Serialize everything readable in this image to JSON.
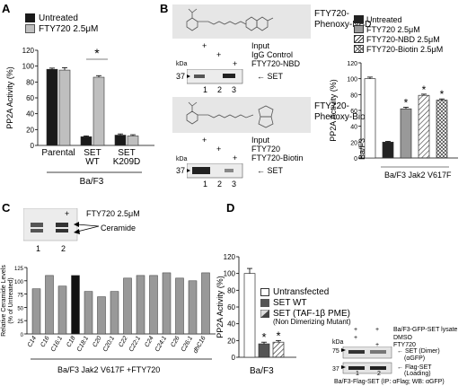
{
  "panels": {
    "a": "A",
    "b": "B",
    "c": "C",
    "d": "D"
  },
  "panel_a": {
    "legend": [
      "Untreated",
      "FTY720 2.5μM"
    ],
    "star": "*",
    "group_label": "Ba/F3"
  },
  "panel_b": {
    "struct_label_1_line1": "FTY720-",
    "struct_label_1_line2": "Phenoxy-NBD",
    "struct_label_2_line1": "FTY720-",
    "struct_label_2_line2": "Phenoxy-Biotin",
    "blot1": {
      "plus": [
        "+",
        "+",
        "+"
      ],
      "rows": [
        "Input",
        "IgG Control",
        "FTY720-NBD"
      ],
      "kda": "kDa",
      "marker": "37",
      "band": "SET",
      "lanes": [
        "1",
        "2",
        "3"
      ]
    },
    "blot2": {
      "plus": [
        "+",
        "+",
        "+"
      ],
      "rows": [
        "Input",
        "FTY720",
        "FTY720-Biotin"
      ],
      "kda": "kDa",
      "marker": "37",
      "band": "SET",
      "lanes": [
        "1",
        "2",
        "3"
      ]
    },
    "legend": [
      "Untreated",
      "FTY720 2.5μM",
      "FTY720-NBD 2.5μM",
      "FTY720-Biotin 2.5μM"
    ],
    "stars": [
      "*",
      "*",
      "*"
    ],
    "x_label_1": "Ba/F3",
    "x_label_2": "Ba/F3 Jak2 V617F"
  },
  "panel_c": {
    "tlc": {
      "plus": "+",
      "treat": "FTY720 2.5μM",
      "band": "Ceramide",
      "lanes": [
        "1",
        "2"
      ]
    },
    "x_caption": "Ba/F3 Jak2 V617F +FTY720"
  },
  "panel_d": {
    "legend": [
      "Untransfected",
      "SET WT",
      "SET (TAF-1β PME)"
    ],
    "legend_sub": "(Non Dimerizing Mutant)",
    "stars": [
      "*",
      "*"
    ],
    "group_label": "Ba/F3",
    "blot": {
      "rows": [
        "Ba/F3-GFP-SET lysate",
        "DMSO",
        "FTY720"
      ],
      "plus": [
        "+",
        "+",
        "+",
        "+"
      ],
      "kda": "kDa",
      "markers": [
        "75",
        "37"
      ],
      "band1": "SET (Dimer)",
      "band1_sub": "(αGFP)",
      "band2": "Flag-SET",
      "band2_sub": "(Loading)",
      "lanes": [
        "1",
        "2"
      ],
      "caption": "Ba/F3-Flag-SET (IP: αFlag; WB: αGFP)"
    }
  },
  "chart_data": [
    {
      "type": "bar",
      "panel": "A",
      "categories": [
        "Parental",
        "SET WT",
        "SET K209D"
      ],
      "series": [
        {
          "name": "Untreated",
          "values": [
            96,
            11,
            13
          ]
        },
        {
          "name": "FTY720 2.5μM",
          "values": [
            95,
            86,
            12
          ]
        }
      ],
      "errors": [
        [
          1.5,
          1,
          1.5
        ],
        [
          3,
          2,
          1.5
        ]
      ],
      "ylabel": "PP2A Activity (%)",
      "ylim": [
        0,
        120
      ],
      "yticks": [
        0,
        20,
        40,
        60,
        80,
        100,
        120
      ],
      "colors": [
        "#1a1a1a",
        "#bfbfbf"
      ]
    },
    {
      "type": "bar",
      "panel": "B",
      "categories": [
        "Ba/F3",
        "Untreated",
        "FTY720 2.5μM",
        "FTY720-NBD 2.5μM",
        "FTY720-Biotin 2.5μM"
      ],
      "values": [
        100,
        20,
        62,
        79,
        73
      ],
      "errors": [
        2,
        1,
        2,
        1.5,
        1.5
      ],
      "ylabel": "PP2A Activity (%)",
      "ylim": [
        0,
        120
      ],
      "yticks": [
        0,
        20,
        40,
        60,
        80,
        100,
        120
      ]
    },
    {
      "type": "bar",
      "panel": "C",
      "categories": [
        "C14",
        "C16",
        "C16:1",
        "C18",
        "C18:1",
        "C20",
        "C20:1",
        "C22",
        "C22:1",
        "C24",
        "C24:1",
        "C26",
        "C26:1",
        "dhC16"
      ],
      "values": [
        85,
        110,
        90,
        110,
        80,
        70,
        80,
        105,
        110,
        110,
        115,
        105,
        100,
        115
      ],
      "ylabel_line1": "Relative Ceramide Levels",
      "ylabel_line2": "(% of Untreated)",
      "ylim": [
        0,
        125
      ],
      "yticks": [
        0,
        25,
        50,
        75,
        100,
        125
      ]
    },
    {
      "type": "bar",
      "panel": "D",
      "categories": [
        "Ba/F3"
      ],
      "series": [
        {
          "name": "Untransfected",
          "values": [
            100
          ]
        },
        {
          "name": "SET WT",
          "values": [
            16
          ]
        },
        {
          "name": "SET (TAF-1β PME)",
          "values": [
            18
          ]
        }
      ],
      "errors": [
        [
          6
        ],
        [
          2
        ],
        [
          2
        ]
      ],
      "ylabel": "PP2A Activity (%)",
      "ylim": [
        0,
        120
      ],
      "yticks": [
        0,
        20,
        40,
        60,
        80,
        100,
        120
      ]
    }
  ]
}
